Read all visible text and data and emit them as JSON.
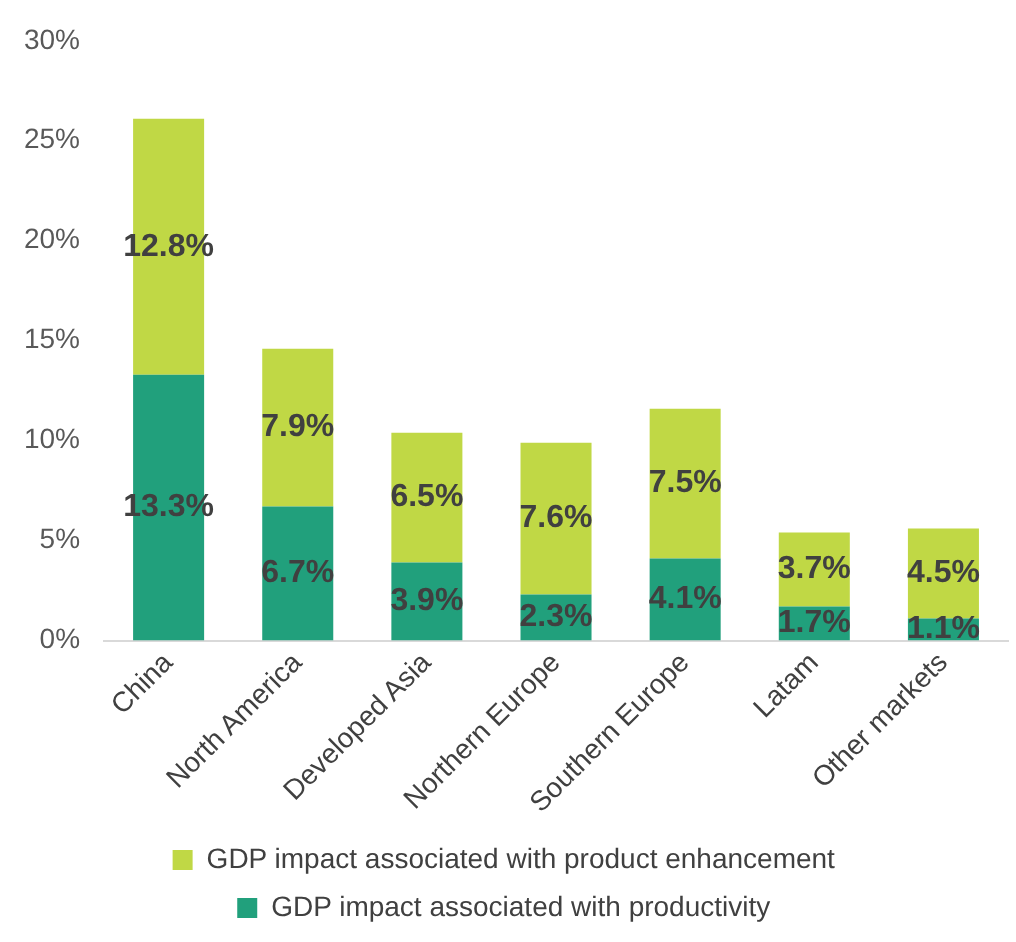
{
  "chart_data": {
    "type": "bar",
    "stacked": true,
    "categories": [
      "China",
      "North America",
      "Developed Asia",
      "Northern Europe",
      "Southern Europe",
      "Latam",
      "Other markets"
    ],
    "series": [
      {
        "name": "GDP impact associated with productivity",
        "color": "#21a07c",
        "values": [
          13.3,
          6.7,
          3.9,
          2.3,
          4.1,
          1.7,
          1.1
        ],
        "value_labels": [
          "13.3%",
          "6.7%",
          "3.9%",
          "2.3%",
          "4.1%",
          "1.7%",
          "1.1%"
        ]
      },
      {
        "name": "GDP impact associated with product enhancement",
        "color": "#c0d845",
        "values": [
          12.8,
          7.9,
          6.5,
          7.6,
          7.5,
          3.7,
          4.5
        ],
        "value_labels": [
          "12.8%",
          "7.9%",
          "6.5%",
          "7.6%",
          "7.5%",
          "3.7%",
          "4.5%"
        ]
      }
    ],
    "ylim": [
      0,
      30
    ],
    "yticks": [
      {
        "value": 0,
        "label": "0%"
      },
      {
        "value": 5,
        "label": "5%"
      },
      {
        "value": 10,
        "label": "10%"
      },
      {
        "value": 15,
        "label": "15%"
      },
      {
        "value": 20,
        "label": "20%"
      },
      {
        "value": 25,
        "label": "25%"
      },
      {
        "value": 30,
        "label": "30%"
      }
    ],
    "grid": false,
    "legend": "bottom"
  }
}
